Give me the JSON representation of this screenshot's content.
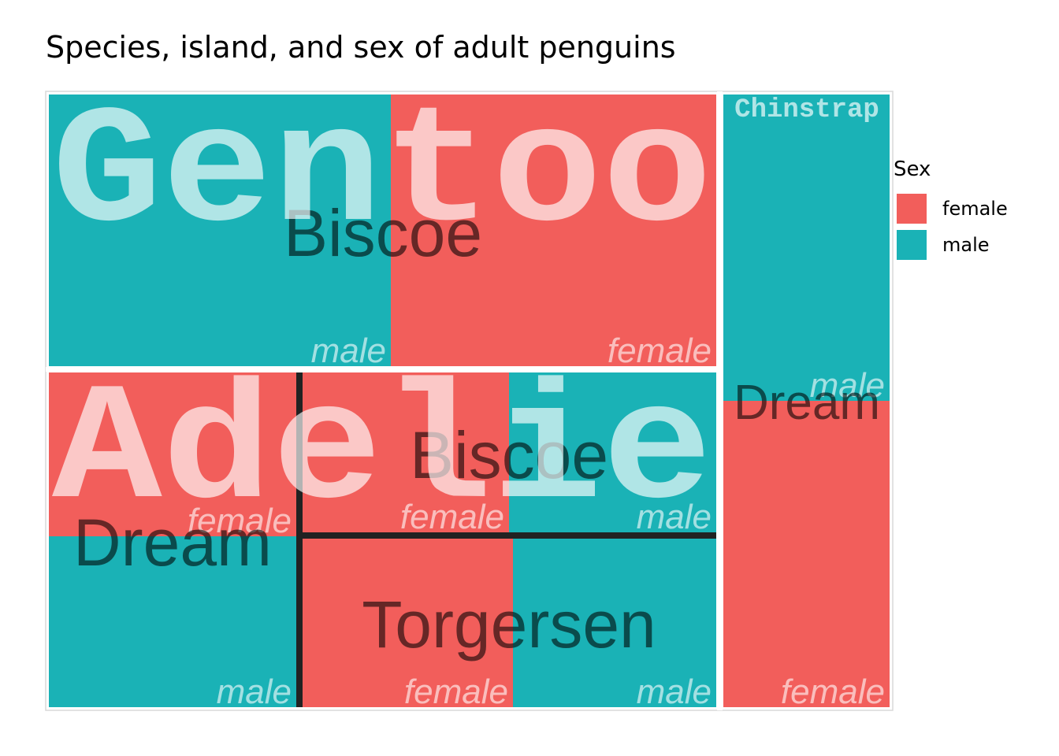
{
  "title": "Species, island, and sex of adult penguins",
  "legend": {
    "title": "Sex",
    "items": [
      {
        "label": "female",
        "color": "#F25E5B"
      },
      {
        "label": "male",
        "color": "#1AB2B6"
      }
    ]
  },
  "chart_data": {
    "type": "treemap",
    "title": "Species, island, and sex of adult penguins",
    "colors": {
      "female": "#F25E5B",
      "male": "#1AB2B6"
    },
    "hierarchy": [
      "species",
      "island",
      "sex"
    ],
    "nodes": [
      {
        "species": "Gentoo",
        "island": "Biscoe",
        "sex": "male",
        "count": 61
      },
      {
        "species": "Gentoo",
        "island": "Biscoe",
        "sex": "female",
        "count": 58
      },
      {
        "species": "Adelie",
        "island": "Dream",
        "sex": "female",
        "count": 27
      },
      {
        "species": "Adelie",
        "island": "Dream",
        "sex": "male",
        "count": 28
      },
      {
        "species": "Adelie",
        "island": "Biscoe",
        "sex": "female",
        "count": 22
      },
      {
        "species": "Adelie",
        "island": "Biscoe",
        "sex": "male",
        "count": 22
      },
      {
        "species": "Adelie",
        "island": "Torgersen",
        "sex": "female",
        "count": 24
      },
      {
        "species": "Adelie",
        "island": "Torgersen",
        "sex": "male",
        "count": 23
      },
      {
        "species": "Chinstrap",
        "island": "Dream",
        "sex": "male",
        "count": 34
      },
      {
        "species": "Chinstrap",
        "island": "Dream",
        "sex": "female",
        "count": 34
      }
    ]
  }
}
